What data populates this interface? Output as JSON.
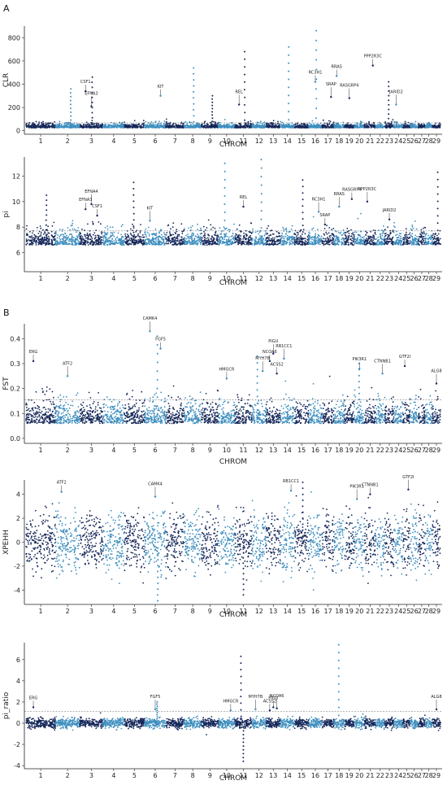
{
  "panel_labels": [
    "A",
    "B"
  ],
  "colors": {
    "dark": "#16285a",
    "light": "#3f8fbf"
  },
  "chart_data": [
    {
      "id": "clr",
      "type": "scatter",
      "ylabel": "CLR",
      "xlabel": "CHROM",
      "ylim": [
        -30,
        900
      ],
      "yticks": [
        0,
        200,
        400,
        600,
        800
      ],
      "base": 25,
      "spread": 45,
      "threshold": 68,
      "genes": [
        {
          "name": "CSF1",
          "chrom": 3,
          "value": 340
        },
        {
          "name": "EFNA3",
          "chrom": 3,
          "value": 210
        },
        {
          "name": "KIT",
          "chrom": 6,
          "value": 300
        },
        {
          "name": "REL",
          "chrom": 11,
          "value": 225
        },
        {
          "name": "RC3H1",
          "chrom": 16,
          "value": 420
        },
        {
          "name": "SRAP",
          "chrom": 17,
          "value": 290
        },
        {
          "name": "RRAS",
          "chrom": 18,
          "value": 470
        },
        {
          "name": "RASGRP4",
          "chrom": 19,
          "value": 280
        },
        {
          "name": "PPP2R3C",
          "chrom": 21,
          "value": 560
        },
        {
          "name": "JARID2",
          "chrom": 24,
          "value": 225
        }
      ],
      "peaks": [
        {
          "chrom": 2,
          "value": 360
        },
        {
          "chrom": 3,
          "value": 460
        },
        {
          "chrom": 8,
          "value": 540
        },
        {
          "chrom": 11,
          "value": 680
        },
        {
          "chrom": 14,
          "value": 720
        },
        {
          "chrom": 16,
          "value": 860
        },
        {
          "chrom": 23,
          "value": 420
        },
        {
          "chrom": 9,
          "value": 300
        }
      ]
    },
    {
      "id": "pi",
      "type": "scatter",
      "ylabel": "pi",
      "xlabel": "CHROM",
      "ylim": [
        4.5,
        13.5
      ],
      "yticks": [
        6,
        8,
        10,
        12
      ],
      "base": 6.6,
      "spread": 1.3,
      "threshold": 7.7,
      "genes": [
        {
          "name": "EFNA3",
          "chrom": 3,
          "value": 9.4
        },
        {
          "name": "EFNA4",
          "chrom": 3,
          "value": 9.8
        },
        {
          "name": "CSF1",
          "chrom": 3,
          "value": 8.9
        },
        {
          "name": "KIT",
          "chrom": 6,
          "value": 8.5
        },
        {
          "name": "REL",
          "chrom": 11,
          "value": 9.6
        },
        {
          "name": "RC3H1",
          "chrom": 16,
          "value": 9.2
        },
        {
          "name": "SRAP",
          "chrom": 17,
          "value": 8.2
        },
        {
          "name": "RRAS",
          "chrom": 18,
          "value": 9.6
        },
        {
          "name": "RASGRP4",
          "chrom": 19,
          "value": 10.2
        },
        {
          "name": "PPP2R3C",
          "chrom": 21,
          "value": 10.0
        },
        {
          "name": "JARID2",
          "chrom": 23,
          "value": 8.6
        }
      ],
      "peaks": [
        {
          "chrom": 10,
          "value": 13.0
        },
        {
          "chrom": 12,
          "value": 13.3
        },
        {
          "chrom": 15,
          "value": 11.7
        },
        {
          "chrom": 29,
          "value": 12.3
        },
        {
          "chrom": 1,
          "value": 10.5
        },
        {
          "chrom": 5,
          "value": 11.5
        }
      ]
    },
    {
      "id": "fst",
      "type": "scatter",
      "ylabel": "FST",
      "xlabel": "CHROM",
      "ylim": [
        -0.02,
        0.46
      ],
      "yticks": [
        0.0,
        0.1,
        0.2,
        0.3,
        0.4
      ],
      "base": 0.06,
      "spread": 0.1,
      "threshold": 0.155,
      "genes": [
        {
          "name": "ERG",
          "chrom": 1,
          "value": 0.31
        },
        {
          "name": "ATF2",
          "chrom": 2,
          "value": 0.25
        },
        {
          "name": "FGF5",
          "chrom": 6,
          "value": 0.36
        },
        {
          "name": "CAMK4",
          "chrom": 6,
          "value": 0.43
        },
        {
          "name": "HMGCR",
          "chrom": 10,
          "value": 0.24
        },
        {
          "name": "MYH7B",
          "chrom": 12,
          "value": 0.27
        },
        {
          "name": "NCOA6",
          "chrom": 13,
          "value": 0.31
        },
        {
          "name": "PIGU",
          "chrom": 13,
          "value": 0.34
        },
        {
          "name": "ACSS2",
          "chrom": 13,
          "value": 0.26
        },
        {
          "name": "RB1CC1",
          "chrom": 14,
          "value": 0.32
        },
        {
          "name": "PIK3R1",
          "chrom": 20,
          "value": 0.28
        },
        {
          "name": "CTNNB1",
          "chrom": 22,
          "value": 0.26
        },
        {
          "name": "GTF2I",
          "chrom": 25,
          "value": 0.29
        },
        {
          "name": "ALG8",
          "chrom": 29,
          "value": 0.22
        }
      ],
      "peaks": [
        {
          "chrom": 6,
          "value": 0.41
        },
        {
          "chrom": 12,
          "value": 0.33
        },
        {
          "chrom": 20,
          "value": 0.3
        }
      ]
    },
    {
      "id": "xpehh",
      "type": "scatter",
      "ylabel": "XPEHH",
      "xlabel": "CHROM",
      "ylim": [
        -5.2,
        5.2
      ],
      "yticks": [
        -4,
        -2,
        0,
        2,
        4
      ],
      "base": 0,
      "spread": 2.6,
      "threshold": null,
      "genes": [
        {
          "name": "ATF2",
          "chrom": 2,
          "value": 4.2
        },
        {
          "name": "CAMK4",
          "chrom": 6,
          "value": 3.8
        },
        {
          "name": "RB1CC1",
          "chrom": 14,
          "value": 4.3
        },
        {
          "name": "PIK3R1",
          "chrom": 20,
          "value": 3.6
        },
        {
          "name": "CTNNB1",
          "chrom": 21,
          "value": 4.0
        },
        {
          "name": "GTF2I",
          "chrom": 25,
          "value": 4.4
        }
      ],
      "peaks": [
        {
          "chrom": 6,
          "value": -4.9
        },
        {
          "chrom": 11,
          "value": -4.4
        },
        {
          "chrom": 15,
          "value": 5.0
        }
      ]
    },
    {
      "id": "pi_ratio",
      "type": "scatter",
      "ylabel": "pi_ratio",
      "xlabel": "CHROM",
      "ylim": [
        -4.3,
        7.6
      ],
      "yticks": [
        -4,
        -2,
        0,
        2,
        4,
        6
      ],
      "base": 0,
      "spread": 0.9,
      "threshold": 1.1,
      "genes": [
        {
          "name": "ERG",
          "chrom": 1,
          "value": 1.5
        },
        {
          "name": "FGF5",
          "chrom": 6,
          "value": 1.3
        },
        {
          "name": "HMGCR",
          "chrom": 10,
          "value": 1.2
        },
        {
          "name": "MYH7B",
          "chrom": 12,
          "value": 1.3
        },
        {
          "name": "PIGU",
          "chrom": 13,
          "value": 1.5
        },
        {
          "name": "NCOA6",
          "chrom": 13,
          "value": 1.4
        },
        {
          "name": "ACSS2",
          "chrom": 13,
          "value": 1.2
        },
        {
          "name": "ALG8",
          "chrom": 29,
          "value": 1.3
        }
      ],
      "peaks": [
        {
          "chrom": 11,
          "value": 6.3
        },
        {
          "chrom": 11,
          "value": -3.6
        },
        {
          "chrom": 18,
          "value": 7.4
        },
        {
          "chrom": 6,
          "value": 2.0
        }
      ]
    }
  ],
  "chrom_labels": [
    "1",
    "2",
    "3",
    "4",
    "5",
    "6",
    "7",
    "8",
    "9",
    "10",
    "11",
    "12",
    "13",
    "14",
    "15",
    "16",
    "17",
    "18",
    "19",
    "20",
    "21",
    "22",
    "23",
    "24",
    "25",
    "26",
    "27",
    "28",
    "29"
  ]
}
